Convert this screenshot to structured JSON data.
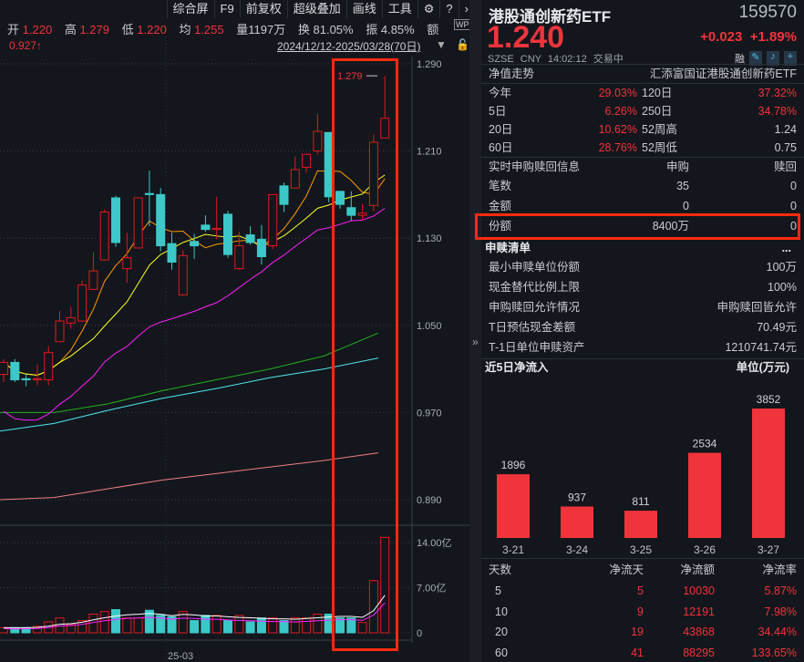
{
  "toolbar": {
    "items": [
      "综合屏",
      "F9",
      "前复权",
      "超级叠加",
      "画线",
      "工具"
    ],
    "settings_icon": "gear-icon",
    "help_icon": "help-icon",
    "more_icon": "chevron-right-icon"
  },
  "quote_bar": {
    "open_label": "开",
    "open": "1.220",
    "high_label": "高",
    "high": "1.279",
    "low_label": "低",
    "low": "1.220",
    "avg_label": "均",
    "avg": "1.255",
    "vol_label": "量",
    "vol": "1197万",
    "turnover_label": "换",
    "turnover": "81.05%",
    "amp_label": "振",
    "amp": "4.85%",
    "amount_label": "额"
  },
  "left_marker": "0.927↑",
  "date_range": "2024/12/12-2025/03/28(70日)",
  "chart_data": {
    "type": "candlestick",
    "price_axis": {
      "ticks": [
        "1.290",
        "1.210",
        "1.130",
        "1.050",
        "0.970",
        "0.890"
      ],
      "range": [
        0.89,
        1.29
      ]
    },
    "volume_axis": {
      "ticks": [
        "14.00亿",
        "7.00亿",
        "0"
      ],
      "range": [
        0,
        14
      ]
    },
    "x_tick": "25-03",
    "max_label": "1.279",
    "candles": [
      [
        1.005,
        1.019,
        0.998,
        1.016
      ],
      [
        1.016,
        1.019,
        0.998,
        1.0
      ],
      [
        1.001,
        1.005,
        0.994,
        1.0
      ],
      [
        1.0,
        1.014,
        0.995,
        1.001
      ],
      [
        1.0,
        1.031,
        0.995,
        1.025
      ],
      [
        1.035,
        1.063,
        1.035,
        1.054
      ],
      [
        1.052,
        1.067,
        1.047,
        1.057
      ],
      [
        1.054,
        1.091,
        1.053,
        1.087
      ],
      [
        1.083,
        1.117,
        1.083,
        1.1
      ],
      [
        1.11,
        1.156,
        1.11,
        1.154
      ],
      [
        1.167,
        1.169,
        1.122,
        1.126
      ],
      [
        1.102,
        1.135,
        1.089,
        1.112
      ],
      [
        1.121,
        1.167,
        1.121,
        1.167
      ],
      [
        1.171,
        1.192,
        1.141,
        1.17
      ],
      [
        1.17,
        1.176,
        1.118,
        1.123
      ],
      [
        1.125,
        1.135,
        1.101,
        1.108
      ],
      [
        1.078,
        1.119,
        1.078,
        1.114
      ],
      [
        1.127,
        1.134,
        1.111,
        1.123
      ],
      [
        1.142,
        1.151,
        1.136,
        1.138
      ],
      [
        1.138,
        1.168,
        1.129,
        1.139
      ],
      [
        1.152,
        1.155,
        1.112,
        1.115
      ],
      [
        1.102,
        1.136,
        1.101,
        1.123
      ],
      [
        1.133,
        1.141,
        1.124,
        1.126
      ],
      [
        1.129,
        1.142,
        1.106,
        1.113
      ],
      [
        1.123,
        1.17,
        1.12,
        1.17
      ],
      [
        1.178,
        1.181,
        1.154,
        1.161
      ],
      [
        1.176,
        1.205,
        1.176,
        1.193
      ],
      [
        1.195,
        1.207,
        1.19,
        1.207
      ],
      [
        1.21,
        1.244,
        1.207,
        1.228
      ],
      [
        1.227,
        1.227,
        1.163,
        1.168
      ],
      [
        1.173,
        1.173,
        1.157,
        1.161
      ],
      [
        1.158,
        1.173,
        1.146,
        1.151
      ],
      [
        1.151,
        1.161,
        1.146,
        1.153
      ],
      [
        1.16,
        1.225,
        1.155,
        1.218
      ],
      [
        1.222,
        1.279,
        1.222,
        1.24
      ]
    ],
    "volumes": [
      0.8,
      0.8,
      0.8,
      1.0,
      1.7,
      2.3,
      1.3,
      1.9,
      2.9,
      3.3,
      3.6,
      2.3,
      2.3,
      3.5,
      2.7,
      2.5,
      3.3,
      1.9,
      2.7,
      2.7,
      1.9,
      2.7,
      1.7,
      2.3,
      2.3,
      1.9,
      2.3,
      2.3,
      2.9,
      2.9,
      2.3,
      2.3,
      1.6,
      8.1,
      14.8
    ],
    "long_ma": [
      {
        "color": "#22b020",
        "values": [
          0.97,
          0.97,
          0.978,
          0.99,
          1.0,
          1.01,
          1.022,
          1.043
        ]
      },
      {
        "color": "#50e8f0",
        "values": [
          0.953,
          0.96,
          0.972,
          0.983,
          0.992,
          1.002,
          1.01,
          1.02
        ]
      },
      {
        "color": "#f08080",
        "values": [
          0.89,
          0.892,
          0.9,
          0.908,
          0.914,
          0.92,
          0.926,
          0.933
        ]
      }
    ],
    "ma_colors": {
      "ma5": "#ff9900",
      "ma10": "#ffff20",
      "ma20": "#ff20ff"
    },
    "up_color": "#e0191e",
    "down_color": "#3cc8c8"
  },
  "panel": {
    "name": "港股通创新药ETF",
    "code": "159570",
    "price": "1.240",
    "change": "+0.023",
    "change_pct": "+1.89%",
    "status": {
      "exchange": "SZSE",
      "currency": "CNY",
      "time": "14:02:12",
      "state": "交易中",
      "rong": "融"
    },
    "nav": {
      "title": "净值走势",
      "fund": "汇添富国证港股通创新药ETF",
      "rows": [
        [
          "今年",
          "29.03%",
          "120日",
          "37.32%"
        ],
        [
          "5日",
          "6.26%",
          "250日",
          "34.78%"
        ],
        [
          "20日",
          "10.62%",
          "52周高",
          "1.24"
        ],
        [
          "60日",
          "28.76%",
          "52周低",
          "0.75"
        ]
      ]
    },
    "realtime": {
      "title": "实时申购赎回信息",
      "col1": "申购",
      "col2": "赎回",
      "rows": [
        [
          "笔数",
          "35",
          "0"
        ],
        [
          "金额",
          "0",
          "0"
        ],
        [
          "份额",
          "8400万",
          "0"
        ]
      ]
    },
    "list": {
      "title": "申赎清单",
      "more": "...",
      "rows": [
        [
          "最小申赎单位份额",
          "100万"
        ],
        [
          "现金替代比例上限",
          "100%"
        ],
        [
          "申购赎回允许情况",
          "申购赎回皆允许"
        ],
        [
          "T日预估现金差额",
          "70.49元"
        ],
        [
          "T-1日单位申赎资产",
          "1210741.74元"
        ]
      ]
    },
    "flow": {
      "title": "近5日净流入",
      "unit": "单位(万元)",
      "dates": [
        "3-21",
        "3-24",
        "3-25",
        "3-26",
        "3-27"
      ],
      "values": [
        1896,
        937,
        811,
        2534,
        3852
      ],
      "labels": [
        "1896",
        "937",
        "811",
        "2534",
        "3852"
      ]
    },
    "flow_table": {
      "headers": [
        "天数",
        "净流天",
        "净流额",
        "净流率"
      ],
      "rows": [
        [
          "5",
          "5",
          "10030",
          "5.87%"
        ],
        [
          "10",
          "9",
          "12191",
          "7.98%"
        ],
        [
          "20",
          "19",
          "43868",
          "34.44%"
        ],
        [
          "60",
          "41",
          "88295",
          "133.65%"
        ]
      ]
    }
  },
  "collapse_icon": "»"
}
